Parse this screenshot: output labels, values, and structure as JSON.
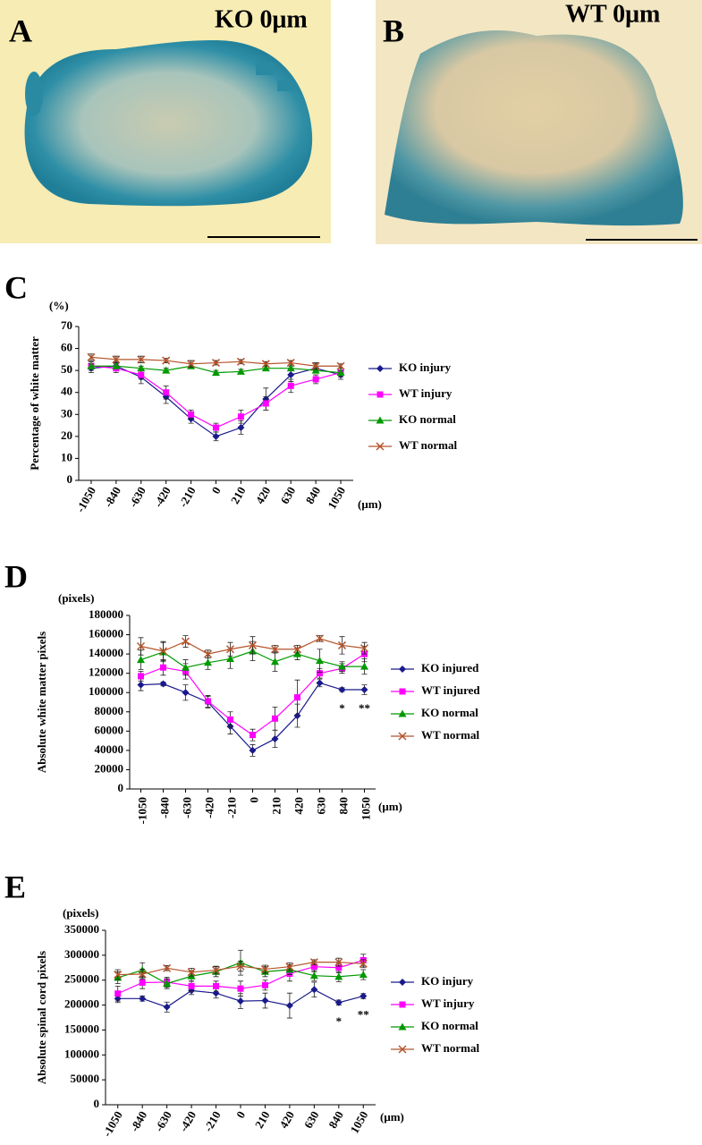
{
  "images": [
    {
      "letter": "A",
      "label": "KO 0μm"
    },
    {
      "letter": "B",
      "label": "WT 0μm"
    }
  ],
  "chart_data": [
    {
      "type": "line",
      "letter": "C",
      "y_unit": "(%)",
      "ylabel": "Percentage of white matter",
      "x_unit": "(μm)",
      "x": [
        -1050,
        -840,
        -630,
        -420,
        -210,
        0,
        210,
        420,
        630,
        840,
        1050
      ],
      "xlim": [
        -1155,
        1155
      ],
      "xticks": [
        -1050,
        -840,
        -630,
        -420,
        -210,
        0,
        210,
        420,
        630,
        840,
        1050
      ],
      "ylim": [
        0,
        70
      ],
      "yticks": [
        0,
        10,
        20,
        30,
        40,
        50,
        60,
        70
      ],
      "series": [
        {
          "name": "KO injury",
          "color": "#1a1a8c",
          "marker": "diamond",
          "values": [
            51,
            52,
            47,
            38,
            28,
            20,
            24,
            37,
            48,
            51,
            48
          ],
          "errors": [
            2,
            2,
            3,
            3,
            2,
            2,
            3,
            5,
            3,
            2,
            2
          ]
        },
        {
          "name": "WT injury",
          "color": "#ff00ff",
          "marker": "square",
          "values": [
            52,
            51,
            48,
            40,
            30,
            24,
            29,
            35,
            43,
            46,
            49
          ],
          "errors": [
            2,
            2,
            2,
            3,
            2,
            2,
            3,
            3,
            3,
            2,
            2
          ]
        },
        {
          "name": "KO normal",
          "color": "#009900",
          "marker": "triangle",
          "values": [
            52,
            52,
            51,
            50,
            52,
            49,
            49.5,
            51,
            51,
            50,
            49
          ],
          "errors": [
            1,
            1,
            1,
            1,
            1,
            1,
            1,
            1,
            1,
            1,
            1
          ]
        },
        {
          "name": "WT normal",
          "color": "#b5532a",
          "marker": "cross",
          "values": [
            56,
            55,
            55,
            54.5,
            53,
            53.5,
            54,
            53,
            53.5,
            52,
            52
          ],
          "errors": [
            1.5,
            1.5,
            1.5,
            1,
            1.5,
            1,
            1,
            1,
            1,
            1.5,
            1
          ]
        }
      ]
    },
    {
      "type": "line",
      "letter": "D",
      "y_unit": "(pixels)",
      "ylabel": "Absolute white matter pixels",
      "x_unit": "(μm)",
      "x": [
        -1050,
        -840,
        -630,
        -420,
        -210,
        0,
        210,
        420,
        630,
        840,
        1050
      ],
      "xlim": [
        -1155,
        1155
      ],
      "xticks": [
        -1050,
        -840,
        -630,
        -420,
        -210,
        0,
        210,
        420,
        630,
        840,
        1050
      ],
      "ylim": [
        0,
        180000
      ],
      "yticks": [
        0,
        20000,
        40000,
        60000,
        80000,
        100000,
        120000,
        140000,
        160000,
        180000
      ],
      "series": [
        {
          "name": "KO injured",
          "color": "#1a1a8c",
          "marker": "diamond",
          "values": [
            108000,
            109000,
            100000,
            90000,
            65000,
            40000,
            52000,
            76000,
            110000,
            103000,
            103000
          ],
          "errors": [
            6000,
            2000,
            8000,
            6000,
            8000,
            6000,
            9000,
            12000,
            4000,
            2000,
            5000
          ]
        },
        {
          "name": "WT injured",
          "color": "#ff00ff",
          "marker": "square",
          "values": [
            117000,
            126000,
            122000,
            91000,
            72000,
            56000,
            73000,
            95000,
            120000,
            125000,
            140000
          ],
          "errors": [
            5000,
            8000,
            8000,
            6000,
            8000,
            6000,
            12000,
            18000,
            5000,
            5000,
            8000
          ]
        },
        {
          "name": "KO normal",
          "color": "#009900",
          "marker": "triangle",
          "values": [
            134000,
            142000,
            126000,
            131000,
            135000,
            143000,
            132000,
            140000,
            133000,
            127000,
            127000
          ],
          "errors": [
            10000,
            10000,
            8000,
            7000,
            10000,
            10000,
            10000,
            6000,
            12000,
            5000,
            8000
          ]
        },
        {
          "name": "WT normal",
          "color": "#b5532a",
          "marker": "cross",
          "values": [
            148000,
            143000,
            153000,
            140000,
            145000,
            149000,
            145000,
            145000,
            156000,
            149000,
            146000
          ],
          "errors": [
            9000,
            10000,
            6000,
            4000,
            7000,
            9000,
            4000,
            4000,
            3000,
            9000,
            6000
          ]
        }
      ],
      "annotations": [
        {
          "x": 840,
          "text": "*"
        },
        {
          "x": 1050,
          "text": "**"
        }
      ]
    },
    {
      "type": "line",
      "letter": "E",
      "y_unit": "(pixels)",
      "ylabel": "Absolute spinal cord pixels",
      "x_unit": "(μm)",
      "x": [
        -1050,
        -840,
        -630,
        -420,
        -210,
        0,
        210,
        420,
        630,
        840,
        1050
      ],
      "xlim": [
        -1155,
        1155
      ],
      "xticks": [
        -1050,
        -840,
        -630,
        -420,
        -210,
        0,
        210,
        420,
        630,
        840,
        1050
      ],
      "ylim": [
        0,
        350000
      ],
      "yticks": [
        0,
        50000,
        100000,
        150000,
        200000,
        250000,
        300000,
        350000
      ],
      "series": [
        {
          "name": "KO injury",
          "color": "#1a1a8c",
          "marker": "diamond",
          "values": [
            213000,
            213000,
            196000,
            229000,
            224000,
            208000,
            209000,
            199000,
            231000,
            205000,
            218000
          ],
          "errors": [
            8000,
            5000,
            10000,
            8000,
            10000,
            15000,
            15000,
            25000,
            15000,
            5000,
            5000
          ]
        },
        {
          "name": "WT injury",
          "color": "#ff00ff",
          "marker": "square",
          "values": [
            223000,
            245000,
            246000,
            238000,
            238000,
            233000,
            240000,
            263000,
            277000,
            275000,
            290000
          ],
          "errors": [
            15000,
            12000,
            10000,
            10000,
            10000,
            15000,
            10000,
            15000,
            10000,
            10000,
            12000
          ]
        },
        {
          "name": "KO normal",
          "color": "#009900",
          "marker": "triangle",
          "values": [
            255000,
            270000,
            243000,
            258000,
            267000,
            285000,
            267000,
            271000,
            259000,
            257000,
            261000
          ],
          "errors": [
            12000,
            15000,
            10000,
            10000,
            10000,
            25000,
            10000,
            10000,
            10000,
            10000,
            10000
          ]
        },
        {
          "name": "WT normal",
          "color": "#b5532a",
          "marker": "cross",
          "values": [
            261000,
            262000,
            274000,
            266000,
            270000,
            278000,
            272000,
            277000,
            286000,
            286000,
            283000
          ],
          "errors": [
            10000,
            10000,
            5000,
            8000,
            8000,
            10000,
            8000,
            8000,
            5000,
            8000,
            8000
          ]
        }
      ],
      "annotations": [
        {
          "x": 840,
          "text": "*"
        },
        {
          "x": 1050,
          "text": "**"
        }
      ]
    }
  ]
}
